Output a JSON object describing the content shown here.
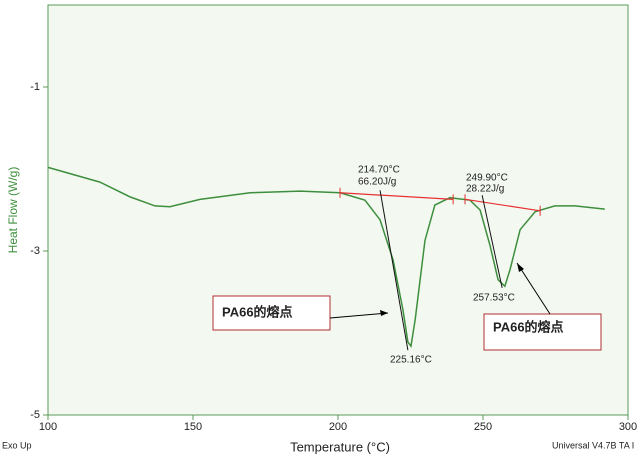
{
  "chart_data": {
    "type": "line",
    "y_label": "Heat Flow (W/g)",
    "x_label": "Temperature (°C)",
    "footer_left": "Exo Up",
    "footer_right": "Universal V4.7B TA I",
    "xlim": [
      100,
      300
    ],
    "xticks": [
      100,
      150,
      200,
      250,
      300
    ],
    "ylim": [
      -5,
      0
    ],
    "yticks": [
      -1,
      -3,
      -5
    ],
    "series": [
      {
        "color": "#3d8f3d",
        "x": [
          100,
          117.9,
          128.3,
          136.9,
          142,
          152.4,
          169.7,
          186.9,
          200.7,
          209.3,
          214.5,
          219,
          222.4,
          224.1,
          225.16,
          226.6,
          230,
          233.4,
          238.6,
          245.5,
          249,
          252.4,
          255.2,
          257.53,
          259.3,
          262.8,
          268,
          274.8,
          281.7,
          292
        ],
        "values": [
          -1.98,
          -2.16,
          -2.34,
          -2.45,
          -2.46,
          -2.37,
          -2.29,
          -2.27,
          -2.29,
          -2.38,
          -2.62,
          -3.11,
          -3.72,
          -4.11,
          -4.16,
          -3.84,
          -2.87,
          -2.44,
          -2.35,
          -2.38,
          -2.5,
          -2.93,
          -3.35,
          -3.43,
          -3.23,
          -2.74,
          -2.52,
          -2.45,
          -2.45,
          -2.49
        ]
      }
    ],
    "baselines": [
      {
        "color": "#e83030",
        "x": [
          200.7,
          239.7
        ],
        "values": [
          -2.29,
          -2.37
        ]
      },
      {
        "color": "#e83030",
        "x": [
          243.8,
          269.7
        ],
        "values": [
          -2.37,
          -2.51
        ]
      }
    ],
    "tangents": [
      {
        "color": "#111111",
        "x": [
          214.5,
          224.1
        ],
        "values": [
          -2.26,
          -4.21
        ]
      },
      {
        "color": "#111111",
        "x": [
          249.7,
          256.6
        ],
        "values": [
          -2.32,
          -3.45
        ]
      }
    ],
    "annotations": [
      "214.70°C",
      "66.20J/g",
      "225.16°C",
      "249.90°C",
      "28.22J/g",
      "257.53°C"
    ],
    "callouts": [
      "PA66的熔点",
      "PA66的熔点"
    ]
  }
}
